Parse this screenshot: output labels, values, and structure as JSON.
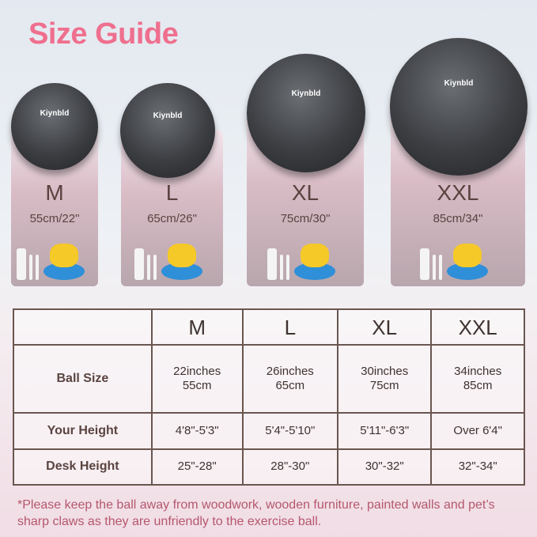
{
  "title": "Size Guide",
  "brand": "Kiynbld",
  "colors": {
    "title": "#ef6f8e",
    "note": "#b5576d",
    "border": "#6a5650"
  },
  "cards": [
    {
      "size": "M",
      "measure": "55cm/22\""
    },
    {
      "size": "L",
      "measure": "65cm/26\""
    },
    {
      "size": "XL",
      "measure": "75cm/30\""
    },
    {
      "size": "XXL",
      "measure": "85cm/34\""
    }
  ],
  "table": {
    "headers": [
      "",
      "M",
      "L",
      "XL",
      "XXL"
    ],
    "rows": [
      {
        "label": "Ball Size",
        "cells": [
          [
            "22inches",
            "55cm"
          ],
          [
            "26inches",
            "65cm"
          ],
          [
            "30inches",
            "75cm"
          ],
          [
            "34inches",
            "85cm"
          ]
        ]
      },
      {
        "label": "Your Height",
        "cells": [
          [
            "4'8\"-5'3\""
          ],
          [
            "5'4\"-5'10\""
          ],
          [
            "5'11\"-6'3\""
          ],
          [
            "Over 6'4\""
          ]
        ]
      },
      {
        "label": "Desk Height",
        "cells": [
          [
            "25\"-28\""
          ],
          [
            "28\"-30\""
          ],
          [
            "30\"-32\""
          ],
          [
            "32\"-34\""
          ]
        ]
      }
    ]
  },
  "note": "*Please keep the ball away from woodwork, wooden furniture, painted walls and pet’s sharp claws as they are unfriendly to the exercise ball."
}
